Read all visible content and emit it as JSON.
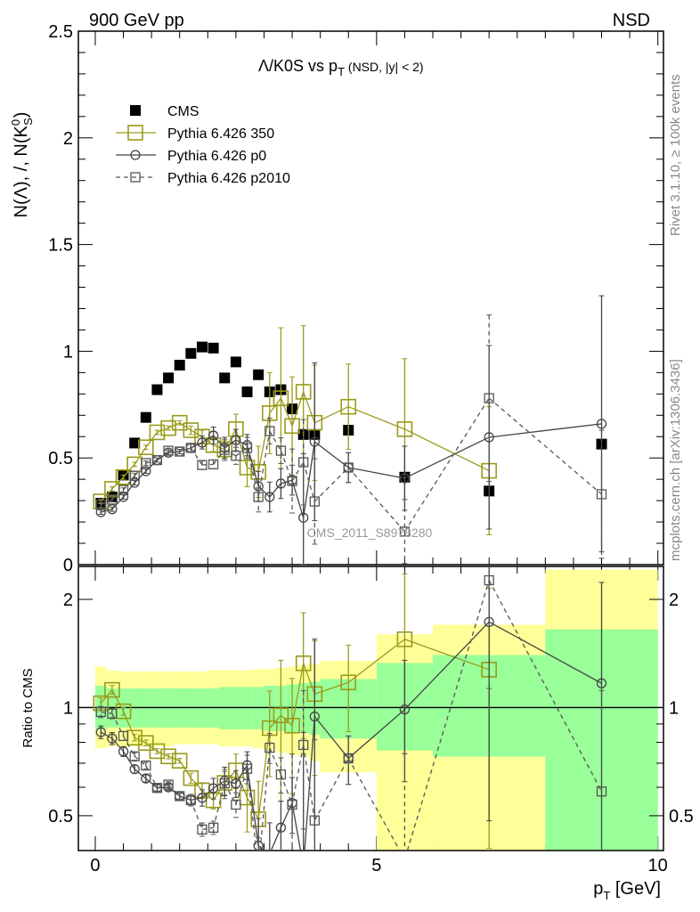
{
  "header": {
    "left": "900 GeV pp",
    "right": "NSD"
  },
  "side": {
    "rivet": "Rivet 3.1.10, ≥ 100k events",
    "mcplots": "mcplots.cern.ch [arXiv:1306.3436]"
  },
  "watermark": "CMS_2011_S8978280",
  "colors": {
    "cms": "#000000",
    "p350": "#9a9a1a",
    "p0": "#444444",
    "p2010": "#555555",
    "green": "#99ff99",
    "yellow": "#ffff99"
  },
  "chart_data": {
    "type": "scatter",
    "title_main": "Λ/K0S vs p",
    "title_sub_t": "T",
    "title_rest": " (NSD, |y| < 2)",
    "ylabel": "N(Λ), /, N(K",
    "ylabel_sup": "0",
    "ylabel_sub": "S",
    "ylabel_end": ")",
    "xlabel": "p",
    "xlabel_sub": "T",
    "xlabel_rest": " [GeV]",
    "ratio_ylabel": "Ratio to CMS",
    "xlim": [
      -0.3,
      10.1
    ],
    "ylim": [
      0,
      2.5
    ],
    "ratio_ylim": [
      0.4,
      2.47
    ],
    "xticks": [
      0,
      5,
      10
    ],
    "yticks": [
      0,
      0.5,
      1,
      1.5,
      2,
      2.5
    ],
    "ytick_labels": [
      "0",
      "0.5",
      "1",
      "1.5",
      "2",
      "2.5"
    ],
    "ratio_yticks": [
      0.5,
      1,
      2
    ],
    "ratio_ytick_labels": [
      "0.5",
      "1",
      "2"
    ],
    "series": [
      {
        "name": "CMS",
        "style": "cms",
        "x": [
          0.1,
          0.3,
          0.5,
          0.7,
          0.9,
          1.1,
          1.3,
          1.5,
          1.7,
          1.9,
          2.1,
          2.3,
          2.5,
          2.7,
          2.9,
          3.1,
          3.3,
          3.5,
          3.7,
          3.9,
          4.5,
          5.5,
          7,
          9
        ],
        "y": [
          0.288,
          0.317,
          0.42,
          0.57,
          0.69,
          0.82,
          0.875,
          0.935,
          0.99,
          1.02,
          1.015,
          0.875,
          0.95,
          0.81,
          0.89,
          0.81,
          0.82,
          0.73,
          0.61,
          0.61,
          0.63,
          0.41,
          0.345,
          0.565
        ]
      },
      {
        "name": "Pythia 6.426 350",
        "style": "p350",
        "x": [
          0.1,
          0.3,
          0.5,
          0.7,
          0.9,
          1.1,
          1.3,
          1.5,
          1.7,
          1.9,
          2.1,
          2.3,
          2.5,
          2.7,
          2.9,
          3.1,
          3.3,
          3.5,
          3.7,
          3.9,
          4.5,
          5.5,
          7
        ],
        "y": [
          0.296,
          0.355,
          0.41,
          0.47,
          0.55,
          0.62,
          0.64,
          0.665,
          0.63,
          0.6,
          0.56,
          0.54,
          0.635,
          0.455,
          0.435,
          0.71,
          0.78,
          0.65,
          0.81,
          0.665,
          0.74,
          0.635,
          0.44
        ],
        "err": [
          0.01,
          0.01,
          0.01,
          0.01,
          0.01,
          0.01,
          0.01,
          0.01,
          0.02,
          0.03,
          0.03,
          0.04,
          0.07,
          0.09,
          0.12,
          0.19,
          0.33,
          0.23,
          0.31,
          0.27,
          0.2,
          0.33,
          0.3
        ]
      },
      {
        "name": "Pythia 6.426 p0",
        "style": "p0",
        "x": [
          0.1,
          0.3,
          0.5,
          0.7,
          0.9,
          1.1,
          1.3,
          1.5,
          1.7,
          1.9,
          2.1,
          2.3,
          2.5,
          2.7,
          2.9,
          3.1,
          3.3,
          3.5,
          3.7,
          3.9,
          4.5,
          5.5,
          7,
          9
        ],
        "y": [
          0.246,
          0.26,
          0.317,
          0.384,
          0.438,
          0.49,
          0.525,
          0.53,
          0.547,
          0.572,
          0.605,
          0.547,
          0.584,
          0.56,
          0.367,
          0.317,
          0.38,
          0.396,
          0.22,
          0.576,
          0.455,
          0.405,
          0.597,
          0.66
        ],
        "err": [
          0.01,
          0.01,
          0.01,
          0.01,
          0.01,
          0.01,
          0.01,
          0.01,
          0.02,
          0.03,
          0.04,
          0.05,
          0.05,
          0.05,
          0.07,
          0.07,
          0.07,
          0.07,
          0.3,
          0.37,
          0.07,
          0.15,
          0.43,
          0.6
        ]
      },
      {
        "name": "Pythia 6.426 p2010",
        "style": "p2010",
        "x": [
          0.1,
          0.3,
          0.5,
          0.7,
          0.9,
          1.1,
          1.3,
          1.5,
          1.7,
          1.9,
          2.1,
          2.3,
          2.5,
          2.7,
          2.9,
          3.1,
          3.3,
          3.5,
          3.7,
          3.9,
          4.5,
          5.5,
          7,
          9
        ],
        "y": [
          0.28,
          0.305,
          0.35,
          0.417,
          0.476,
          0.49,
          0.534,
          0.53,
          0.547,
          0.467,
          0.47,
          0.538,
          0.51,
          0.547,
          0.317,
          0.626,
          0.534,
          0.392,
          0.48,
          0.296,
          0.455,
          0.155,
          0.78,
          0.33
        ],
        "err": [
          0.01,
          0.01,
          0.01,
          0.01,
          0.01,
          0.01,
          0.01,
          0.01,
          0.02,
          0.02,
          0.02,
          0.05,
          0.04,
          0.05,
          0.07,
          0.06,
          0.06,
          0.15,
          0.2,
          0.2,
          0.07,
          0.15,
          0.39,
          0.3
        ]
      }
    ],
    "bands": {
      "edges": [
        0,
        0.2,
        0.4,
        0.6,
        0.8,
        1,
        1.2,
        1.4,
        1.6,
        1.8,
        2,
        2.2,
        2.4,
        2.6,
        2.8,
        3,
        3.2,
        3.4,
        3.6,
        3.8,
        4,
        5,
        6,
        8,
        10
      ],
      "green_lo": [
        0.87,
        0.88,
        0.88,
        0.88,
        0.88,
        0.88,
        0.88,
        0.88,
        0.88,
        0.88,
        0.88,
        0.87,
        0.87,
        0.87,
        0.87,
        0.86,
        0.86,
        0.85,
        0.85,
        0.84,
        0.82,
        0.76,
        0.73,
        0.4
      ],
      "green_hi": [
        1.15,
        1.13,
        1.13,
        1.13,
        1.13,
        1.13,
        1.13,
        1.13,
        1.13,
        1.13,
        1.13,
        1.14,
        1.14,
        1.14,
        1.14,
        1.15,
        1.15,
        1.16,
        1.17,
        1.18,
        1.2,
        1.33,
        1.4,
        1.65
      ],
      "yellow_lo": [
        0.77,
        0.78,
        0.78,
        0.78,
        0.78,
        0.78,
        0.78,
        0.79,
        0.79,
        0.79,
        0.79,
        0.78,
        0.78,
        0.78,
        0.77,
        0.76,
        0.75,
        0.74,
        0.73,
        0.71,
        0.66,
        0.4,
        0.4,
        0.4
      ],
      "yellow_hi": [
        1.3,
        1.27,
        1.26,
        1.26,
        1.26,
        1.26,
        1.26,
        1.26,
        1.26,
        1.26,
        1.27,
        1.27,
        1.27,
        1.27,
        1.28,
        1.28,
        1.29,
        1.3,
        1.31,
        1.32,
        1.35,
        1.6,
        1.7,
        2.42
      ]
    }
  }
}
